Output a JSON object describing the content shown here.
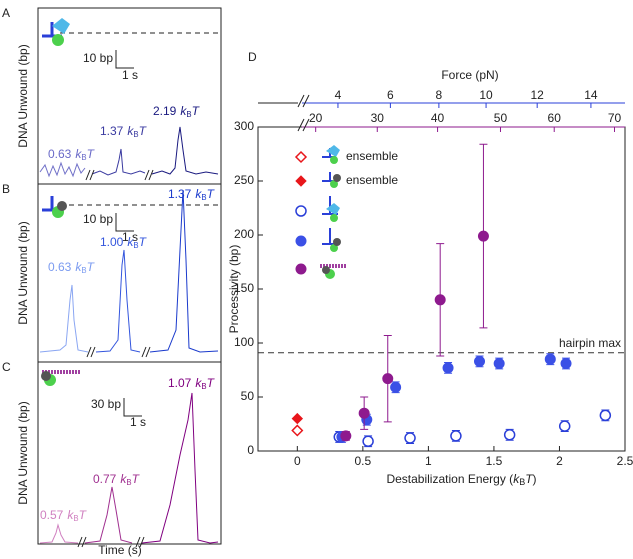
{
  "panels": [
    {
      "letter": "A",
      "ylabel": "DNA Unwound (bp)",
      "scale_y": "10 bp",
      "scale_x": "1 s",
      "energy_labels": [
        "0.63",
        "1.37",
        "2.19"
      ]
    },
    {
      "letter": "B",
      "ylabel": "DNA Unwound (bp)",
      "scale_y": "10 bp",
      "scale_x": "1 s",
      "energy_labels": [
        "0.63",
        "1.00",
        "1.37"
      ]
    },
    {
      "letter": "C",
      "ylabel": "DNA Unwound (bp)",
      "scale_y": "30 bp",
      "scale_x": "1 s",
      "energy_labels": [
        "0.57",
        "0.77",
        "1.07"
      ]
    }
  ],
  "energy_unit": [
    "k",
    "B",
    "T"
  ],
  "time_label": "Time (s)",
  "chart_data": {
    "type": "scatter",
    "letter": "D",
    "xlabel_parts": [
      "Destabilization Energy (",
      "k",
      "B",
      "T",
      ")"
    ],
    "ylabel": "Processivity (bp)",
    "top_label": "Force (pN)",
    "xlim": [
      -0.3,
      2.5
    ],
    "ylim": [
      0,
      300
    ],
    "xticks": [
      0,
      0.5,
      1,
      1.5,
      2,
      2.5
    ],
    "yticks": [
      0,
      50,
      100,
      150,
      200,
      250,
      300
    ],
    "top_ticks_blue": [
      {
        "value": 0.31,
        "label": "4"
      },
      {
        "value": 0.71,
        "label": "6"
      },
      {
        "value": 1.08,
        "label": "8"
      },
      {
        "value": 1.44,
        "label": "10"
      },
      {
        "value": 1.83,
        "label": "12"
      },
      {
        "value": 2.24,
        "label": "14"
      }
    ],
    "top_ticks_purple": [
      {
        "value": 0.14,
        "label": "20"
      },
      {
        "value": 0.61,
        "label": "30"
      },
      {
        "value": 1.07,
        "label": "40"
      },
      {
        "value": 1.55,
        "label": "50"
      },
      {
        "value": 1.96,
        "label": "60"
      },
      {
        "value": 2.42,
        "label": "70"
      }
    ],
    "hline": {
      "value": 91,
      "label": "hairpin max"
    },
    "series": [
      {
        "name": "ensemble",
        "color": "#e8161b",
        "marker": "diamond-open",
        "x": [
          0
        ],
        "values": [
          19
        ]
      },
      {
        "name": "ensemble",
        "color": "#e8161b",
        "marker": "diamond",
        "x": [
          0
        ],
        "values": [
          30
        ]
      },
      {
        "color": "#2a3fd8",
        "marker": "circle-open",
        "x": [
          0.32,
          0.54,
          0.86,
          1.21,
          1.62,
          2.04,
          2.35
        ],
        "values": [
          13,
          9,
          12,
          14,
          15,
          23,
          33
        ],
        "errors": [
          5,
          5,
          5,
          5,
          5,
          5,
          5
        ]
      },
      {
        "color": "#3b50e6",
        "marker": "circle",
        "x": [
          0.34,
          0.53,
          0.75,
          1.15,
          1.39,
          1.54,
          1.93,
          2.05
        ],
        "values": [
          13,
          29,
          59,
          77,
          83,
          81,
          85,
          81
        ],
        "errors": [
          5,
          5,
          5,
          5,
          5,
          5,
          5,
          5
        ]
      },
      {
        "color": "#8e1a8e",
        "marker": "circle",
        "x": [
          0.37,
          0.51,
          0.69,
          1.09,
          1.42
        ],
        "values": [
          14,
          35,
          67,
          140,
          199
        ],
        "errors": [
          4,
          15,
          40,
          52,
          85
        ]
      }
    ]
  }
}
